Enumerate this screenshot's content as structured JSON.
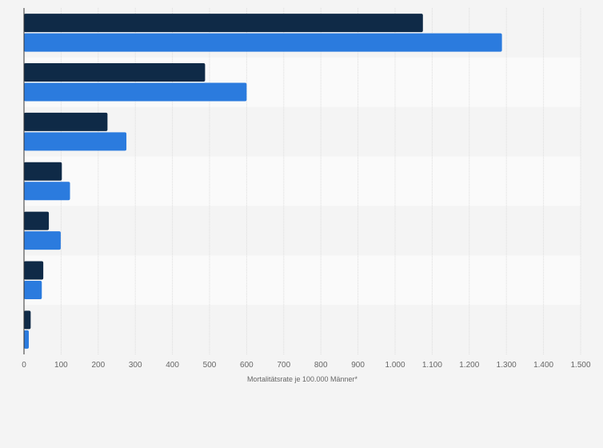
{
  "chart_data": {
    "type": "bar",
    "orientation": "horizontal",
    "title": "",
    "xlabel": "Mortalitätsrate je 100.000 Männer*",
    "ylabel": "",
    "xlim": [
      0,
      1500
    ],
    "x_ticks": [
      0,
      100,
      200,
      300,
      400,
      500,
      600,
      700,
      800,
      900,
      1000,
      1100,
      1200,
      1300,
      1400,
      1500
    ],
    "x_tick_labels": [
      "0",
      "100",
      "200",
      "300",
      "400",
      "500",
      "600",
      "700",
      "800",
      "900",
      "1.000",
      "1.100",
      "1.200",
      "1.300",
      "1.400",
      "1.500"
    ],
    "grid": true,
    "legend": "none",
    "categories": [
      "",
      "",
      "",
      "",
      "",
      "",
      ""
    ],
    "series": [
      {
        "color": "#0f2a47",
        "values": [
          1075,
          488,
          225,
          102,
          67,
          52,
          18
        ]
      },
      {
        "color": "#2b7bde",
        "values": [
          1288,
          600,
          276,
          124,
          99,
          48,
          13
        ]
      }
    ]
  }
}
